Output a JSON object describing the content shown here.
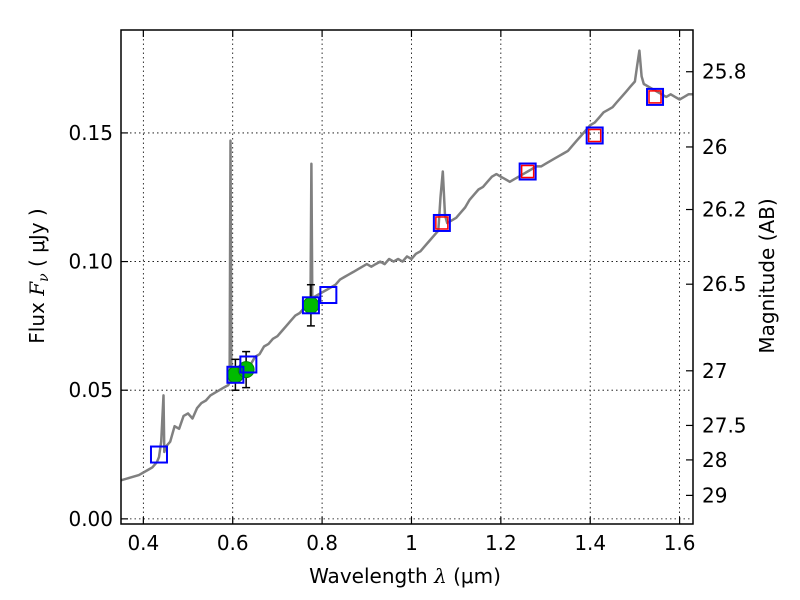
{
  "chart_data": {
    "type": "scatter",
    "xlabel": {
      "pre": "Wavelength",
      "sym": "λ",
      "post": "(μm)"
    },
    "ylabel": {
      "pre": "Flux",
      "sym": "F",
      "sub": "ν",
      "post": "( μJy )"
    },
    "y2label": "Magnitude (AB)",
    "xlim": [
      0.35,
      1.63
    ],
    "ylim": [
      -0.002,
      0.19
    ],
    "x_ticks": [
      {
        "value": 0.4,
        "label": "0.4"
      },
      {
        "value": 0.6,
        "label": "0.6"
      },
      {
        "value": 0.8,
        "label": "0.8"
      },
      {
        "value": 1.0,
        "label": "1"
      },
      {
        "value": 1.2,
        "label": "1.2"
      },
      {
        "value": 1.4,
        "label": "1.4"
      },
      {
        "value": 1.6,
        "label": "1.6"
      }
    ],
    "y_ticks": [
      {
        "value": 0.0,
        "label": "0.00"
      },
      {
        "value": 0.05,
        "label": "0.05"
      },
      {
        "value": 0.1,
        "label": "0.10"
      },
      {
        "value": 0.15,
        "label": "0.15"
      }
    ],
    "y2_ticks": [
      {
        "value": 25.8,
        "label": "25.8"
      },
      {
        "value": 26.0,
        "label": "26"
      },
      {
        "value": 26.2,
        "label": "26.2"
      },
      {
        "value": 26.5,
        "label": "26.5"
      },
      {
        "value": 27.0,
        "label": "27"
      },
      {
        "value": 27.5,
        "label": "27.5"
      },
      {
        "value": 28.0,
        "label": "28"
      },
      {
        "value": 29.0,
        "label": "29"
      }
    ],
    "grid": true,
    "colors": {
      "spectrum": "#808080",
      "model_box": "#0000ff",
      "observed_box": "#ff0000",
      "observed_point": "#00bb00",
      "error_bar": "#000000"
    },
    "spectrum": [
      [
        0.35,
        0.015
      ],
      [
        0.37,
        0.016
      ],
      [
        0.39,
        0.017
      ],
      [
        0.41,
        0.019
      ],
      [
        0.42,
        0.02
      ],
      [
        0.43,
        0.022
      ],
      [
        0.435,
        0.024
      ],
      [
        0.44,
        0.03
      ],
      [
        0.445,
        0.048
      ],
      [
        0.447,
        0.026
      ],
      [
        0.45,
        0.028
      ],
      [
        0.46,
        0.03
      ],
      [
        0.47,
        0.036
      ],
      [
        0.48,
        0.035
      ],
      [
        0.49,
        0.04
      ],
      [
        0.5,
        0.041
      ],
      [
        0.51,
        0.039
      ],
      [
        0.52,
        0.043
      ],
      [
        0.53,
        0.045
      ],
      [
        0.54,
        0.046
      ],
      [
        0.55,
        0.048
      ],
      [
        0.56,
        0.049
      ],
      [
        0.57,
        0.05
      ],
      [
        0.58,
        0.051
      ],
      [
        0.59,
        0.052
      ],
      [
        0.593,
        0.053
      ],
      [
        0.595,
        0.147
      ],
      [
        0.597,
        0.053
      ],
      [
        0.6,
        0.053
      ],
      [
        0.61,
        0.055
      ],
      [
        0.62,
        0.057
      ],
      [
        0.63,
        0.059
      ],
      [
        0.64,
        0.06
      ],
      [
        0.65,
        0.063
      ],
      [
        0.66,
        0.064
      ],
      [
        0.67,
        0.067
      ],
      [
        0.68,
        0.068
      ],
      [
        0.69,
        0.07
      ],
      [
        0.7,
        0.071
      ],
      [
        0.71,
        0.073
      ],
      [
        0.72,
        0.075
      ],
      [
        0.73,
        0.077
      ],
      [
        0.74,
        0.079
      ],
      [
        0.75,
        0.08
      ],
      [
        0.76,
        0.082
      ],
      [
        0.77,
        0.084
      ],
      [
        0.774,
        0.085
      ],
      [
        0.776,
        0.138
      ],
      [
        0.778,
        0.085
      ],
      [
        0.78,
        0.086
      ],
      [
        0.79,
        0.087
      ],
      [
        0.8,
        0.088
      ],
      [
        0.81,
        0.089
      ],
      [
        0.82,
        0.09
      ],
      [
        0.83,
        0.091
      ],
      [
        0.84,
        0.093
      ],
      [
        0.85,
        0.094
      ],
      [
        0.86,
        0.095
      ],
      [
        0.87,
        0.096
      ],
      [
        0.88,
        0.097
      ],
      [
        0.89,
        0.098
      ],
      [
        0.9,
        0.099
      ],
      [
        0.91,
        0.098
      ],
      [
        0.92,
        0.099
      ],
      [
        0.93,
        0.1
      ],
      [
        0.94,
        0.099
      ],
      [
        0.95,
        0.101
      ],
      [
        0.96,
        0.1
      ],
      [
        0.97,
        0.101
      ],
      [
        0.98,
        0.1
      ],
      [
        0.99,
        0.102
      ],
      [
        1.0,
        0.101
      ],
      [
        1.01,
        0.103
      ],
      [
        1.02,
        0.104
      ],
      [
        1.03,
        0.106
      ],
      [
        1.04,
        0.108
      ],
      [
        1.05,
        0.11
      ],
      [
        1.06,
        0.112
      ],
      [
        1.065,
        0.125
      ],
      [
        1.07,
        0.135
      ],
      [
        1.075,
        0.118
      ],
      [
        1.08,
        0.115
      ],
      [
        1.09,
        0.116
      ],
      [
        1.1,
        0.117
      ],
      [
        1.11,
        0.119
      ],
      [
        1.12,
        0.121
      ],
      [
        1.13,
        0.124
      ],
      [
        1.14,
        0.126
      ],
      [
        1.15,
        0.128
      ],
      [
        1.16,
        0.129
      ],
      [
        1.17,
        0.131
      ],
      [
        1.18,
        0.133
      ],
      [
        1.19,
        0.134
      ],
      [
        1.2,
        0.133
      ],
      [
        1.21,
        0.132
      ],
      [
        1.22,
        0.131
      ],
      [
        1.23,
        0.132
      ],
      [
        1.24,
        0.133
      ],
      [
        1.25,
        0.134
      ],
      [
        1.26,
        0.135
      ],
      [
        1.27,
        0.136
      ],
      [
        1.28,
        0.137
      ],
      [
        1.29,
        0.137
      ],
      [
        1.3,
        0.138
      ],
      [
        1.31,
        0.139
      ],
      [
        1.32,
        0.14
      ],
      [
        1.33,
        0.141
      ],
      [
        1.34,
        0.142
      ],
      [
        1.35,
        0.143
      ],
      [
        1.36,
        0.145
      ],
      [
        1.37,
        0.147
      ],
      [
        1.38,
        0.149
      ],
      [
        1.39,
        0.151
      ],
      [
        1.4,
        0.153
      ],
      [
        1.41,
        0.154
      ],
      [
        1.42,
        0.156
      ],
      [
        1.43,
        0.158
      ],
      [
        1.44,
        0.159
      ],
      [
        1.45,
        0.16
      ],
      [
        1.46,
        0.162
      ],
      [
        1.47,
        0.164
      ],
      [
        1.48,
        0.166
      ],
      [
        1.49,
        0.168
      ],
      [
        1.5,
        0.17
      ],
      [
        1.505,
        0.176
      ],
      [
        1.51,
        0.182
      ],
      [
        1.515,
        0.172
      ],
      [
        1.52,
        0.169
      ],
      [
        1.53,
        0.168
      ],
      [
        1.54,
        0.167
      ],
      [
        1.55,
        0.166
      ],
      [
        1.56,
        0.165
      ],
      [
        1.57,
        0.164
      ],
      [
        1.58,
        0.165
      ],
      [
        1.59,
        0.164
      ],
      [
        1.6,
        0.163
      ],
      [
        1.61,
        0.164
      ],
      [
        1.62,
        0.165
      ],
      [
        1.63,
        0.165
      ]
    ],
    "model_photometry": [
      {
        "x": 0.435,
        "y": 0.025
      },
      {
        "x": 0.606,
        "y": 0.056
      },
      {
        "x": 0.635,
        "y": 0.06
      },
      {
        "x": 0.775,
        "y": 0.083
      },
      {
        "x": 0.814,
        "y": 0.087
      },
      {
        "x": 1.068,
        "y": 0.115
      },
      {
        "x": 1.26,
        "y": 0.135
      },
      {
        "x": 1.41,
        "y": 0.149
      },
      {
        "x": 1.545,
        "y": 0.164
      }
    ],
    "observed_nir": [
      {
        "x": 1.068,
        "y": 0.115
      },
      {
        "x": 1.26,
        "y": 0.135
      },
      {
        "x": 1.41,
        "y": 0.149
      },
      {
        "x": 1.545,
        "y": 0.164
      }
    ],
    "observed_optical": [
      {
        "x": 0.606,
        "y": 0.056,
        "err": 0.006
      },
      {
        "x": 0.63,
        "y": 0.058,
        "err": 0.007
      },
      {
        "x": 0.775,
        "y": 0.083,
        "err": 0.008
      }
    ]
  }
}
